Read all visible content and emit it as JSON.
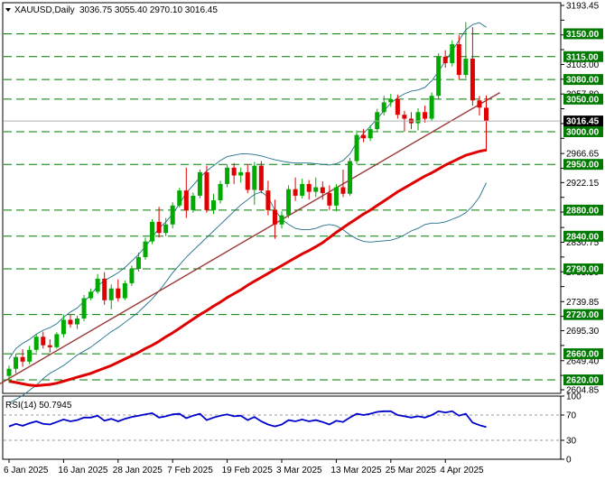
{
  "header": {
    "symbol": "XAUUSD,Daily",
    "ohlc": "3036.75 3055.40 2970.10 3016.45",
    "rsi_label": "RSI(14) 50.7945"
  },
  "chart_data": {
    "type": "candlestick",
    "symbol": "XAUUSD",
    "timeframe": "Daily",
    "ohlc_last": {
      "open": 3036.75,
      "high": 3055.4,
      "low": 2970.1,
      "close": 3016.45
    },
    "price_axis": {
      "range": [
        2604.85,
        3193.45
      ],
      "ticks": [
        3193.45,
        3170.9,
        3148.3,
        3125.7,
        3103.0,
        3080.4,
        3057.8,
        3035.2,
        3012.55,
        2989.95,
        2966.65,
        2944.05,
        2922.15,
        2899.55,
        2876.95,
        2853.35,
        2830.75,
        2808.15,
        2785.5,
        2762.9,
        2739.85,
        2717.25,
        2695.3,
        2672.7,
        2649.4,
        2626.8,
        2604.85
      ],
      "tick_labels": [
        "3193.45",
        "3148.30",
        "3103.00",
        "3057.80",
        "3012.55",
        "2966.65",
        "2922.15",
        "2876.95",
        "2830.75",
        "2785.50",
        "2739.85",
        "2695.30",
        "2649.40",
        "2604.85"
      ],
      "current_price": 3016.45
    },
    "levels": [
      3150.0,
      3115.0,
      3080.0,
      3050.0,
      3000.0,
      2950.0,
      2880.0,
      2840.0,
      2790.0,
      2720.0,
      2660.0,
      2620.0
    ],
    "level_labels": [
      "3150.00",
      "3115.00",
      "3080.00",
      "3050.00",
      "3000.00",
      "2950.00",
      "2880.00",
      "2840.00",
      "2790.00",
      "2720.00",
      "2660.00",
      "2620.00"
    ],
    "x_axis": {
      "labels": [
        "6 Jan 2025",
        "16 Jan 2025",
        "28 Jan 2025",
        "7 Feb 2025",
        "19 Feb 2025",
        "3 Mar 2025",
        "13 Mar 2025",
        "25 Mar 2025",
        "4 Apr 2025"
      ],
      "label_bar_index": [
        0,
        8,
        16,
        24,
        32,
        40,
        48,
        56,
        64
      ]
    },
    "candles": [
      {
        "o": 2626,
        "h": 2642,
        "l": 2615,
        "c": 2637
      },
      {
        "o": 2637,
        "h": 2660,
        "l": 2630,
        "c": 2655
      },
      {
        "o": 2655,
        "h": 2667,
        "l": 2640,
        "c": 2648
      },
      {
        "o": 2648,
        "h": 2672,
        "l": 2644,
        "c": 2666
      },
      {
        "o": 2666,
        "h": 2690,
        "l": 2662,
        "c": 2686
      },
      {
        "o": 2686,
        "h": 2694,
        "l": 2668,
        "c": 2673
      },
      {
        "o": 2673,
        "h": 2682,
        "l": 2662,
        "c": 2670
      },
      {
        "o": 2670,
        "h": 2693,
        "l": 2668,
        "c": 2690
      },
      {
        "o": 2690,
        "h": 2720,
        "l": 2685,
        "c": 2712
      },
      {
        "o": 2712,
        "h": 2720,
        "l": 2700,
        "c": 2705
      },
      {
        "o": 2705,
        "h": 2718,
        "l": 2698,
        "c": 2714
      },
      {
        "o": 2714,
        "h": 2750,
        "l": 2710,
        "c": 2745
      },
      {
        "o": 2745,
        "h": 2760,
        "l": 2742,
        "c": 2755
      },
      {
        "o": 2755,
        "h": 2782,
        "l": 2752,
        "c": 2775
      },
      {
        "o": 2775,
        "h": 2785,
        "l": 2735,
        "c": 2742
      },
      {
        "o": 2742,
        "h": 2766,
        "l": 2728,
        "c": 2760
      },
      {
        "o": 2760,
        "h": 2774,
        "l": 2740,
        "c": 2745
      },
      {
        "o": 2745,
        "h": 2772,
        "l": 2742,
        "c": 2768
      },
      {
        "o": 2768,
        "h": 2795,
        "l": 2764,
        "c": 2790
      },
      {
        "o": 2790,
        "h": 2815,
        "l": 2786,
        "c": 2808
      },
      {
        "o": 2808,
        "h": 2838,
        "l": 2804,
        "c": 2832
      },
      {
        "o": 2832,
        "h": 2866,
        "l": 2828,
        "c": 2862
      },
      {
        "o": 2862,
        "h": 2885,
        "l": 2838,
        "c": 2845
      },
      {
        "o": 2845,
        "h": 2868,
        "l": 2840,
        "c": 2858
      },
      {
        "o": 2858,
        "h": 2892,
        "l": 2852,
        "c": 2887
      },
      {
        "o": 2887,
        "h": 2914,
        "l": 2884,
        "c": 2910
      },
      {
        "o": 2910,
        "h": 2945,
        "l": 2868,
        "c": 2880
      },
      {
        "o": 2880,
        "h": 2907,
        "l": 2876,
        "c": 2902
      },
      {
        "o": 2902,
        "h": 2942,
        "l": 2898,
        "c": 2938
      },
      {
        "o": 2938,
        "h": 2948,
        "l": 2876,
        "c": 2880
      },
      {
        "o": 2880,
        "h": 2905,
        "l": 2874,
        "c": 2895
      },
      {
        "o": 2895,
        "h": 2925,
        "l": 2890,
        "c": 2920
      },
      {
        "o": 2920,
        "h": 2950,
        "l": 2915,
        "c": 2945
      },
      {
        "o": 2945,
        "h": 2952,
        "l": 2920,
        "c": 2933
      },
      {
        "o": 2933,
        "h": 2945,
        "l": 2922,
        "c": 2938
      },
      {
        "o": 2938,
        "h": 2950,
        "l": 2906,
        "c": 2911
      },
      {
        "o": 2911,
        "h": 2954,
        "l": 2888,
        "c": 2948
      },
      {
        "o": 2948,
        "h": 2955,
        "l": 2906,
        "c": 2910
      },
      {
        "o": 2910,
        "h": 2925,
        "l": 2872,
        "c": 2880
      },
      {
        "o": 2880,
        "h": 2896,
        "l": 2836,
        "c": 2858
      },
      {
        "o": 2858,
        "h": 2878,
        "l": 2852,
        "c": 2872
      },
      {
        "o": 2872,
        "h": 2918,
        "l": 2868,
        "c": 2912
      },
      {
        "o": 2912,
        "h": 2930,
        "l": 2894,
        "c": 2902
      },
      {
        "o": 2902,
        "h": 2928,
        "l": 2898,
        "c": 2920
      },
      {
        "o": 2920,
        "h": 2926,
        "l": 2896,
        "c": 2908
      },
      {
        "o": 2908,
        "h": 2930,
        "l": 2900,
        "c": 2915
      },
      {
        "o": 2915,
        "h": 2924,
        "l": 2896,
        "c": 2906
      },
      {
        "o": 2906,
        "h": 2918,
        "l": 2880,
        "c": 2887
      },
      {
        "o": 2887,
        "h": 2920,
        "l": 2878,
        "c": 2915
      },
      {
        "o": 2915,
        "h": 2942,
        "l": 2900,
        "c": 2905
      },
      {
        "o": 2905,
        "h": 2960,
        "l": 2902,
        "c": 2955
      },
      {
        "o": 2955,
        "h": 3002,
        "l": 2950,
        "c": 2995
      },
      {
        "o": 2995,
        "h": 3004,
        "l": 2984,
        "c": 2990
      },
      {
        "o": 2990,
        "h": 3010,
        "l": 2986,
        "c": 3004
      },
      {
        "o": 3004,
        "h": 3035,
        "l": 3000,
        "c": 3030
      },
      {
        "o": 3030,
        "h": 3055,
        "l": 3025,
        "c": 3045
      },
      {
        "o": 3045,
        "h": 3058,
        "l": 3038,
        "c": 3050
      },
      {
        "o": 3050,
        "h": 3057,
        "l": 3020,
        "c": 3026
      },
      {
        "o": 3026,
        "h": 3032,
        "l": 3000,
        "c": 3020
      },
      {
        "o": 3020,
        "h": 3030,
        "l": 3004,
        "c": 3013
      },
      {
        "o": 3013,
        "h": 3036,
        "l": 3002,
        "c": 3030
      },
      {
        "o": 3030,
        "h": 3040,
        "l": 3014,
        "c": 3020
      },
      {
        "o": 3020,
        "h": 3060,
        "l": 3016,
        "c": 3055
      },
      {
        "o": 3055,
        "h": 3120,
        "l": 3050,
        "c": 3115
      },
      {
        "o": 3115,
        "h": 3125,
        "l": 3098,
        "c": 3105
      },
      {
        "o": 3105,
        "h": 3140,
        "l": 3100,
        "c": 3134
      },
      {
        "o": 3134,
        "h": 3148,
        "l": 3080,
        "c": 3087
      },
      {
        "o": 3087,
        "h": 3168,
        "l": 3082,
        "c": 3112
      },
      {
        "o": 3112,
        "h": 3160,
        "l": 3040,
        "c": 3048
      },
      {
        "o": 3048,
        "h": 3055,
        "l": 3025,
        "c": 3037
      },
      {
        "o": 3036.75,
        "h": 3055.4,
        "l": 2970.1,
        "c": 3016.45
      }
    ],
    "ema": [
      2618,
      2616,
      2614,
      2612,
      2611,
      2612,
      2613,
      2615,
      2618,
      2621,
      2624,
      2627,
      2630,
      2634,
      2638,
      2642,
      2647,
      2652,
      2657,
      2662,
      2668,
      2673,
      2679,
      2686,
      2692,
      2699,
      2706,
      2713,
      2720,
      2726,
      2733,
      2739,
      2746,
      2752,
      2758,
      2765,
      2771,
      2777,
      2783,
      2789,
      2795,
      2801,
      2807,
      2813,
      2818,
      2824,
      2830,
      2838,
      2846,
      2853,
      2860,
      2867,
      2874,
      2880,
      2887,
      2894,
      2901,
      2908,
      2914,
      2920,
      2926,
      2932,
      2937,
      2943,
      2949,
      2954,
      2959,
      2964,
      2967,
      2970,
      2972
    ],
    "bb_upper": [
      2652,
      2668,
      2676,
      2682,
      2690,
      2696,
      2700,
      2706,
      2716,
      2724,
      2730,
      2740,
      2750,
      2764,
      2772,
      2778,
      2784,
      2792,
      2802,
      2812,
      2824,
      2838,
      2852,
      2862,
      2874,
      2890,
      2906,
      2918,
      2930,
      2940,
      2948,
      2956,
      2962,
      2964,
      2966,
      2966,
      2965,
      2963,
      2960,
      2957,
      2955,
      2953,
      2952,
      2952,
      2952,
      2951,
      2950,
      2949,
      2951,
      2956,
      2966,
      2984,
      2998,
      3008,
      3020,
      3032,
      3044,
      3052,
      3058,
      3062,
      3064,
      3068,
      3078,
      3092,
      3108,
      3124,
      3140,
      3156,
      3164,
      3167,
      3160
    ],
    "bb_lower": [
      2585,
      2590,
      2596,
      2604,
      2612,
      2622,
      2630,
      2636,
      2642,
      2650,
      2658,
      2664,
      2670,
      2678,
      2686,
      2694,
      2700,
      2708,
      2716,
      2724,
      2734,
      2744,
      2756,
      2770,
      2784,
      2796,
      2808,
      2818,
      2828,
      2838,
      2848,
      2858,
      2868,
      2878,
      2888,
      2896,
      2904,
      2908,
      2900,
      2880,
      2866,
      2858,
      2852,
      2850,
      2850,
      2852,
      2856,
      2858,
      2856,
      2850,
      2842,
      2836,
      2832,
      2831,
      2832,
      2833,
      2834,
      2837,
      2842,
      2848,
      2852,
      2858,
      2860,
      2860,
      2862,
      2866,
      2870,
      2876,
      2886,
      2900,
      2922
    ],
    "trendline": {
      "from": {
        "bar": -2,
        "price": 2610
      },
      "to": {
        "bar": 72,
        "price": 3060
      }
    },
    "rsi": {
      "name": "RSI(14)",
      "last": 50.7945,
      "range": [
        0,
        100
      ],
      "tick_labels": [
        "100",
        "70",
        "30",
        "0"
      ],
      "ticks": [
        100,
        70,
        30,
        0
      ],
      "values": [
        52,
        56,
        53,
        57,
        60,
        56,
        55,
        59,
        63,
        60,
        62,
        66,
        66,
        69,
        61,
        64,
        60,
        64,
        67,
        69,
        71,
        73,
        66,
        68,
        71,
        72,
        65,
        69,
        72,
        62,
        66,
        69,
        71,
        68,
        69,
        62,
        67,
        60,
        55,
        52,
        55,
        62,
        60,
        63,
        60,
        62,
        59,
        55,
        61,
        59,
        66,
        72,
        70,
        72,
        75,
        76,
        76,
        70,
        68,
        66,
        68,
        66,
        70,
        76,
        74,
        76,
        69,
        72,
        58,
        54,
        50.8
      ]
    }
  }
}
